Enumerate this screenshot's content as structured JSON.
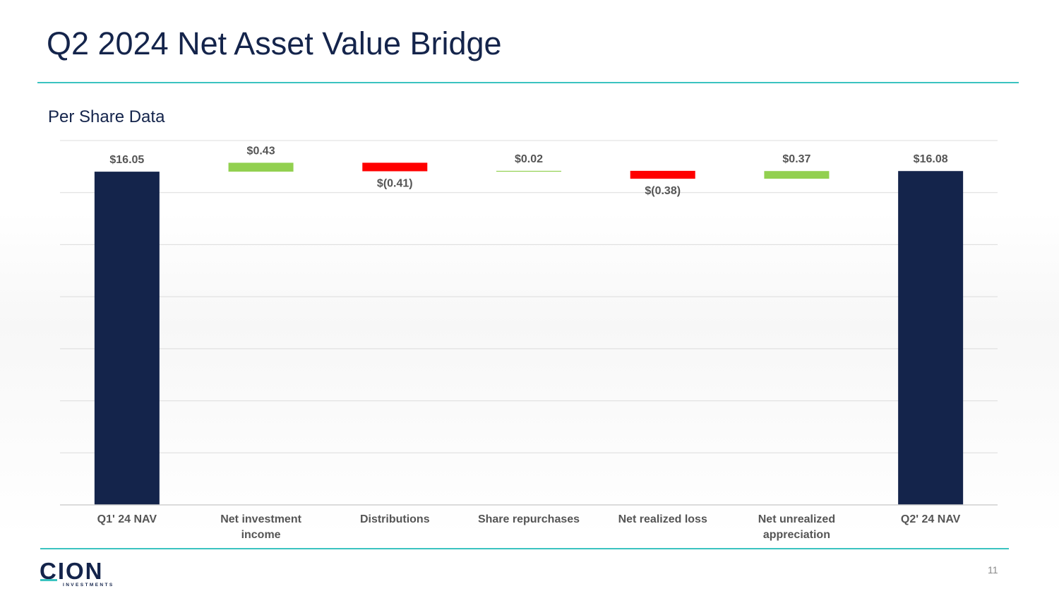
{
  "page": {
    "title": "Q2 2024 Net Asset Value Bridge",
    "subtitle": "Per Share Data",
    "page_number": "11"
  },
  "logo": {
    "wordmark": "CION",
    "tagline": "INVESTMENTS"
  },
  "colors": {
    "accent_teal": "#3bc3c0",
    "navy": "#14244b",
    "increase": "#92d050",
    "decrease": "#ff0000",
    "label_gray": "#555555"
  },
  "chart_data": {
    "type": "waterfall",
    "title": "Per Share Data",
    "categories": [
      [
        "Q1' 24 NAV"
      ],
      [
        "Net investment",
        "income"
      ],
      [
        "Distributions"
      ],
      [
        "Share repurchases"
      ],
      [
        "Net realized loss"
      ],
      [
        "Net unrealized",
        "appreciation"
      ],
      [
        "Q2' 24 NAV"
      ]
    ],
    "values": [
      16.05,
      0.43,
      -0.41,
      0.02,
      -0.38,
      0.37,
      16.08
    ],
    "kinds": [
      "total",
      "delta",
      "delta",
      "delta",
      "delta",
      "delta",
      "total"
    ],
    "labels": [
      "$16.05",
      "$0.43",
      "$(0.41)",
      "$0.02",
      "$(0.38)",
      "$0.37",
      "$16.08"
    ],
    "ylim": [
      0,
      17.55
    ],
    "gridlines": 7,
    "legend": "none"
  }
}
